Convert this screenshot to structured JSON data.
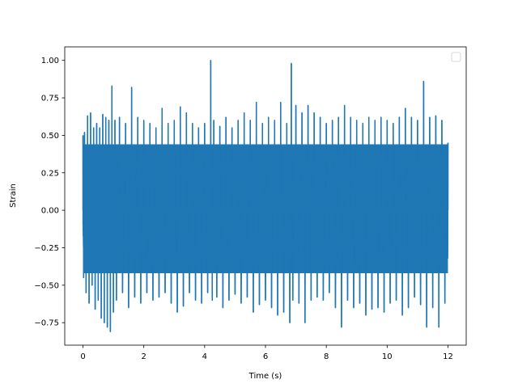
{
  "chart_data": {
    "type": "line",
    "title": "",
    "xlabel": "Time (s)",
    "ylabel": "Strain",
    "xlim": [
      -0.6,
      12.6
    ],
    "ylim": [
      -0.9,
      1.09
    ],
    "x_ticks": [
      0,
      2,
      4,
      6,
      8,
      10,
      12
    ],
    "x_tick_labels": [
      "0",
      "2",
      "4",
      "6",
      "8",
      "10",
      "12"
    ],
    "y_ticks": [
      -0.75,
      -0.5,
      -0.25,
      0.0,
      0.25,
      0.5,
      0.75,
      1.0
    ],
    "y_tick_labels": [
      "−0.75",
      "−0.50",
      "−0.25",
      "0.00",
      "0.25",
      "0.50",
      "0.75",
      "1.00"
    ],
    "grid": false,
    "legend": {
      "placement": "upper-right",
      "entries": []
    },
    "series": [
      {
        "color": "#1f77b4",
        "description": "dense oscillating signal over 0–12 s; samples below are the visible peaks and troughs",
        "x": [
          0.0,
          0.02,
          0.05,
          0.1,
          0.15,
          0.2,
          0.25,
          0.3,
          0.35,
          0.4,
          0.45,
          0.5,
          0.55,
          0.6,
          0.65,
          0.7,
          0.75,
          0.8,
          0.85,
          0.9,
          0.95,
          1.0,
          1.05,
          1.1,
          1.2,
          1.3,
          1.4,
          1.5,
          1.6,
          1.7,
          1.8,
          1.9,
          2.0,
          2.1,
          2.2,
          2.3,
          2.4,
          2.5,
          2.6,
          2.7,
          2.8,
          2.9,
          3.0,
          3.1,
          3.2,
          3.3,
          3.4,
          3.5,
          3.6,
          3.7,
          3.8,
          3.9,
          4.0,
          4.1,
          4.2,
          4.25,
          4.3,
          4.4,
          4.5,
          4.6,
          4.7,
          4.8,
          4.9,
          5.0,
          5.1,
          5.2,
          5.3,
          5.4,
          5.5,
          5.6,
          5.7,
          5.8,
          5.9,
          6.0,
          6.1,
          6.2,
          6.3,
          6.4,
          6.5,
          6.6,
          6.7,
          6.8,
          6.85,
          6.9,
          7.0,
          7.1,
          7.2,
          7.3,
          7.4,
          7.5,
          7.6,
          7.7,
          7.8,
          7.9,
          8.0,
          8.1,
          8.2,
          8.3,
          8.4,
          8.5,
          8.6,
          8.7,
          8.8,
          8.9,
          9.0,
          9.1,
          9.2,
          9.3,
          9.4,
          9.5,
          9.6,
          9.7,
          9.8,
          9.9,
          10.0,
          10.1,
          10.2,
          10.3,
          10.4,
          10.5,
          10.6,
          10.7,
          10.8,
          10.9,
          11.0,
          11.1,
          11.2,
          11.3,
          11.4,
          11.5,
          11.6,
          11.7,
          11.8,
          11.9,
          12.0
        ],
        "y": [
          0.5,
          -0.45,
          0.52,
          -0.55,
          0.63,
          -0.62,
          0.65,
          -0.5,
          0.55,
          -0.66,
          0.58,
          -0.6,
          0.55,
          -0.72,
          0.64,
          -0.75,
          0.62,
          -0.78,
          0.6,
          -0.81,
          0.83,
          -0.68,
          0.6,
          -0.6,
          0.62,
          -0.55,
          0.58,
          -0.65,
          0.82,
          -0.58,
          0.62,
          -0.62,
          0.6,
          -0.55,
          0.58,
          -0.6,
          0.55,
          -0.58,
          0.68,
          -0.55,
          0.58,
          -0.62,
          0.6,
          -0.68,
          0.69,
          -0.64,
          0.65,
          -0.55,
          0.58,
          -0.6,
          0.55,
          -0.62,
          0.58,
          -0.55,
          1.0,
          -0.6,
          0.6,
          -0.58,
          0.56,
          -0.65,
          0.62,
          -0.6,
          0.55,
          -0.56,
          0.6,
          -0.62,
          0.65,
          -0.58,
          0.6,
          -0.68,
          0.72,
          -0.63,
          0.58,
          -0.6,
          0.62,
          -0.65,
          0.6,
          -0.7,
          0.72,
          -0.68,
          0.58,
          -0.75,
          0.98,
          -0.6,
          0.7,
          -0.62,
          0.65,
          -0.75,
          0.7,
          -0.6,
          0.65,
          -0.58,
          0.62,
          -0.6,
          0.58,
          -0.55,
          0.6,
          -0.65,
          0.62,
          -0.78,
          0.7,
          -0.6,
          0.62,
          -0.65,
          0.6,
          -0.62,
          0.58,
          -0.7,
          0.62,
          -0.66,
          0.6,
          -0.65,
          0.62,
          -0.68,
          0.6,
          -0.62,
          0.58,
          -0.6,
          0.62,
          -0.7,
          0.68,
          -0.65,
          0.62,
          -0.58,
          0.6,
          -0.63,
          0.86,
          -0.78,
          0.62,
          -0.65,
          0.63,
          -0.78,
          0.6,
          -0.62,
          0.45
        ]
      }
    ],
    "envelope": {
      "description": "typical band of the dense oscillation",
      "upper": 0.44,
      "lower": -0.42
    }
  }
}
